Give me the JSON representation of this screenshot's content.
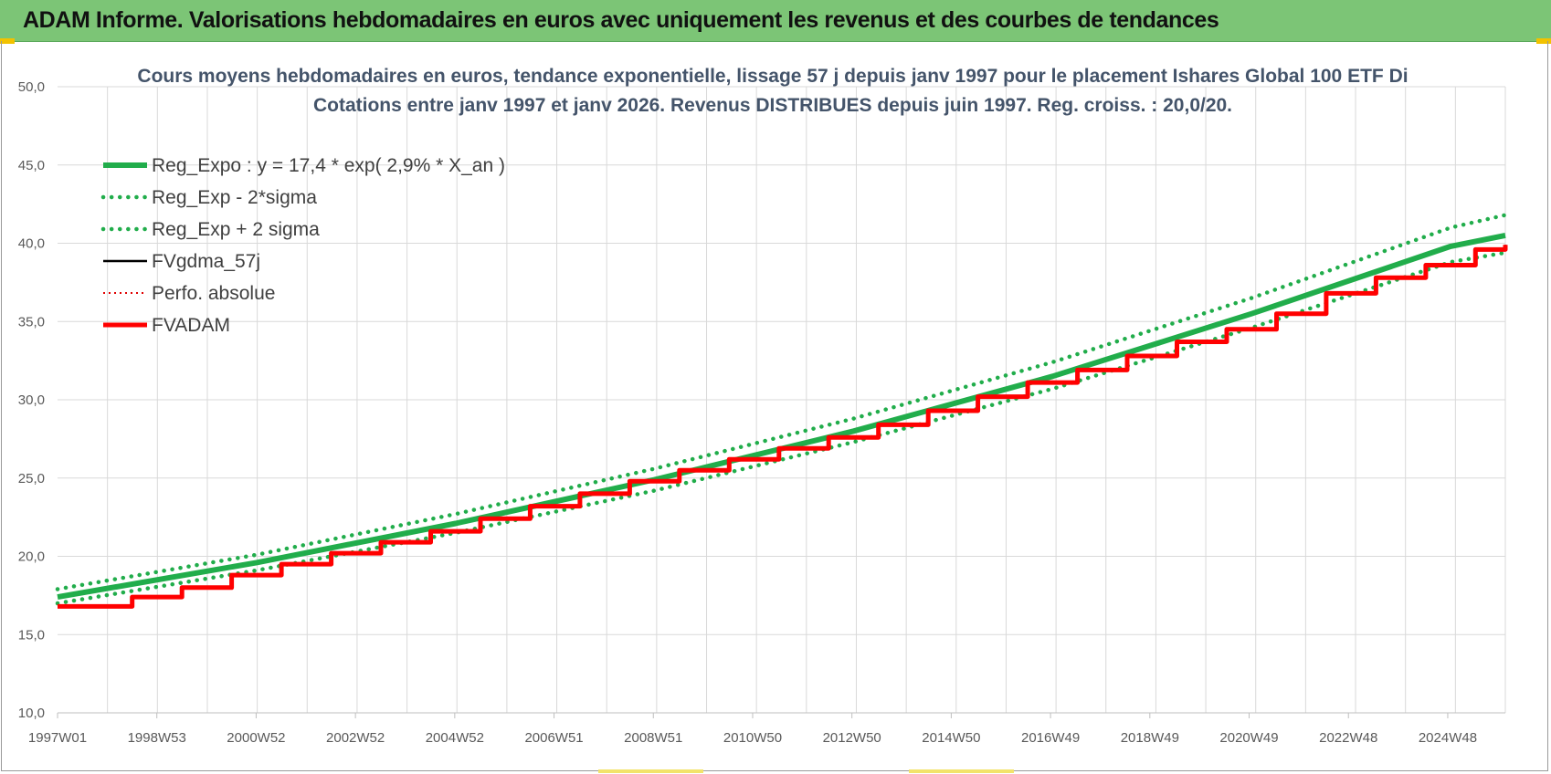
{
  "banner": {
    "title": "ADAM Informe. Valorisations hebdomadaires en euros avec uniquement les revenus et des courbes de tendances"
  },
  "colors": {
    "banner_bg": "#7cc576",
    "reg_expo": "#21ad4b",
    "reg_bands": "#21ad4b",
    "fvgdma": "#000000",
    "perfo": "#e00000",
    "fvadam": "#ff0000",
    "grid": "#d9d9d9"
  },
  "chart_data": {
    "type": "line",
    "title_line1": "Cours moyens hebdomadaires en euros, tendance exponentielle, lissage 57 j depuis janv 1997  pour le placement Ishares Global 100 ETF Di",
    "title_line2": "Cotations entre janv 1997 et janv 2026. Revenus DISTRIBUES depuis juin 1997. Reg. croiss. : 20,0/20.",
    "ylim": [
      10,
      50
    ],
    "y_ticks": [
      "10,0",
      "15,0",
      "20,0",
      "25,0",
      "30,0",
      "35,0",
      "40,0",
      "45,0",
      "50,0"
    ],
    "x_range": [
      1997.0,
      2026.1
    ],
    "x_tick_labels": [
      "1997W01",
      "1998W53",
      "2000W52",
      "2002W52",
      "2004W52",
      "2006W51",
      "2008W51",
      "2010W50",
      "2012W50",
      "2014W50",
      "2016W49",
      "2018W49",
      "2020W49",
      "2022W48",
      "2024W48"
    ],
    "grid": true,
    "legend_position": "top-left",
    "legend": [
      {
        "label": "Reg_Expo : y = 17,4 * exp( 2,9% *  X_an )",
        "style": "solid-thick",
        "color_key": "reg_expo"
      },
      {
        "label": "Reg_Exp - 2*sigma",
        "style": "dotted",
        "color_key": "reg_bands"
      },
      {
        "label": "Reg_Exp + 2 sigma",
        "style": "dotted",
        "color_key": "reg_bands"
      },
      {
        "label": "FVgdma_57j",
        "style": "solid",
        "color_key": "fvgdma"
      },
      {
        "label": "Perfo. absolue",
        "style": "dotted",
        "color_key": "perfo"
      },
      {
        "label": "FVADAM",
        "style": "solid-thick",
        "color_key": "fvadam"
      }
    ],
    "series": [
      {
        "name": "Reg_Expo : y = 17,4 * exp( 2,9% *  X_an )",
        "x": [
          1997,
          2001,
          2005,
          2009,
          2013,
          2017,
          2021,
          2025,
          2026.1
        ],
        "y": [
          17.4,
          19.6,
          22.1,
          24.9,
          28.0,
          31.5,
          35.5,
          39.8,
          40.5
        ]
      },
      {
        "name": "Reg_Exp - 2*sigma",
        "x": [
          1997,
          2001,
          2005,
          2009,
          2013,
          2017,
          2021,
          2025,
          2026.1
        ],
        "y": [
          17.0,
          19.1,
          21.5,
          24.2,
          27.3,
          30.7,
          34.6,
          38.8,
          39.4
        ]
      },
      {
        "name": "Reg_Exp + 2 sigma",
        "x": [
          1997,
          2001,
          2005,
          2009,
          2013,
          2017,
          2021,
          2025,
          2026.1
        ],
        "y": [
          17.9,
          20.1,
          22.7,
          25.6,
          28.8,
          32.4,
          36.5,
          41.0,
          41.8
        ]
      },
      {
        "name": "FVgdma_57j",
        "x": [
          1997.0,
          1997.5,
          1998.5,
          1999.5,
          2000.5,
          2001.5,
          2002.5,
          2003.5,
          2004.5,
          2005.5,
          2006.5,
          2007.5,
          2008.5,
          2009.5,
          2010.5,
          2011.5,
          2012.5,
          2013.5,
          2014.5,
          2015.5,
          2016.5,
          2017.5,
          2018.5,
          2019.5,
          2020.5,
          2021.5,
          2022.5,
          2023.5,
          2024.5,
          2025.5,
          2026.1
        ],
        "y": [
          16.8,
          16.8,
          17.4,
          18.0,
          18.8,
          19.5,
          20.2,
          20.9,
          21.6,
          22.4,
          23.2,
          24.0,
          24.8,
          25.5,
          26.2,
          26.9,
          27.6,
          28.4,
          29.3,
          30.2,
          31.1,
          31.9,
          32.8,
          33.7,
          34.5,
          35.5,
          36.8,
          37.8,
          38.6,
          39.6,
          39.9
        ]
      },
      {
        "name": "Perfo. absolue",
        "x": [
          1997.0,
          1997.5,
          1998.5,
          1999.5,
          2000.5,
          2001.5,
          2002.5,
          2003.5,
          2004.5,
          2005.5,
          2006.5,
          2007.5,
          2008.5,
          2009.5,
          2010.5,
          2011.5,
          2012.5,
          2013.5,
          2014.5,
          2015.5,
          2016.5,
          2017.5,
          2018.5,
          2019.5,
          2020.5,
          2021.5,
          2022.5,
          2023.5,
          2024.5,
          2025.5,
          2026.1
        ],
        "y": [
          16.8,
          16.8,
          17.4,
          18.0,
          18.8,
          19.5,
          20.2,
          20.9,
          21.6,
          22.4,
          23.2,
          24.0,
          24.8,
          25.5,
          26.2,
          26.9,
          27.6,
          28.4,
          29.3,
          30.2,
          31.1,
          31.9,
          32.8,
          33.7,
          34.5,
          35.5,
          36.8,
          37.8,
          38.6,
          39.6,
          39.9
        ]
      },
      {
        "name": "FVADAM",
        "x": [
          1997.0,
          1997.5,
          1998.5,
          1999.5,
          2000.5,
          2001.5,
          2002.5,
          2003.5,
          2004.5,
          2005.5,
          2006.5,
          2007.5,
          2008.5,
          2009.5,
          2010.5,
          2011.5,
          2012.5,
          2013.5,
          2014.5,
          2015.5,
          2016.5,
          2017.5,
          2018.5,
          2019.5,
          2020.5,
          2021.5,
          2022.5,
          2023.5,
          2024.5,
          2025.5,
          2026.1
        ],
        "y": [
          16.8,
          16.8,
          17.4,
          18.0,
          18.8,
          19.5,
          20.2,
          20.9,
          21.6,
          22.4,
          23.2,
          24.0,
          24.8,
          25.5,
          26.2,
          26.9,
          27.6,
          28.4,
          29.3,
          30.2,
          31.1,
          31.9,
          32.8,
          33.7,
          34.5,
          35.5,
          36.8,
          37.8,
          38.6,
          39.6,
          39.9
        ]
      }
    ]
  }
}
